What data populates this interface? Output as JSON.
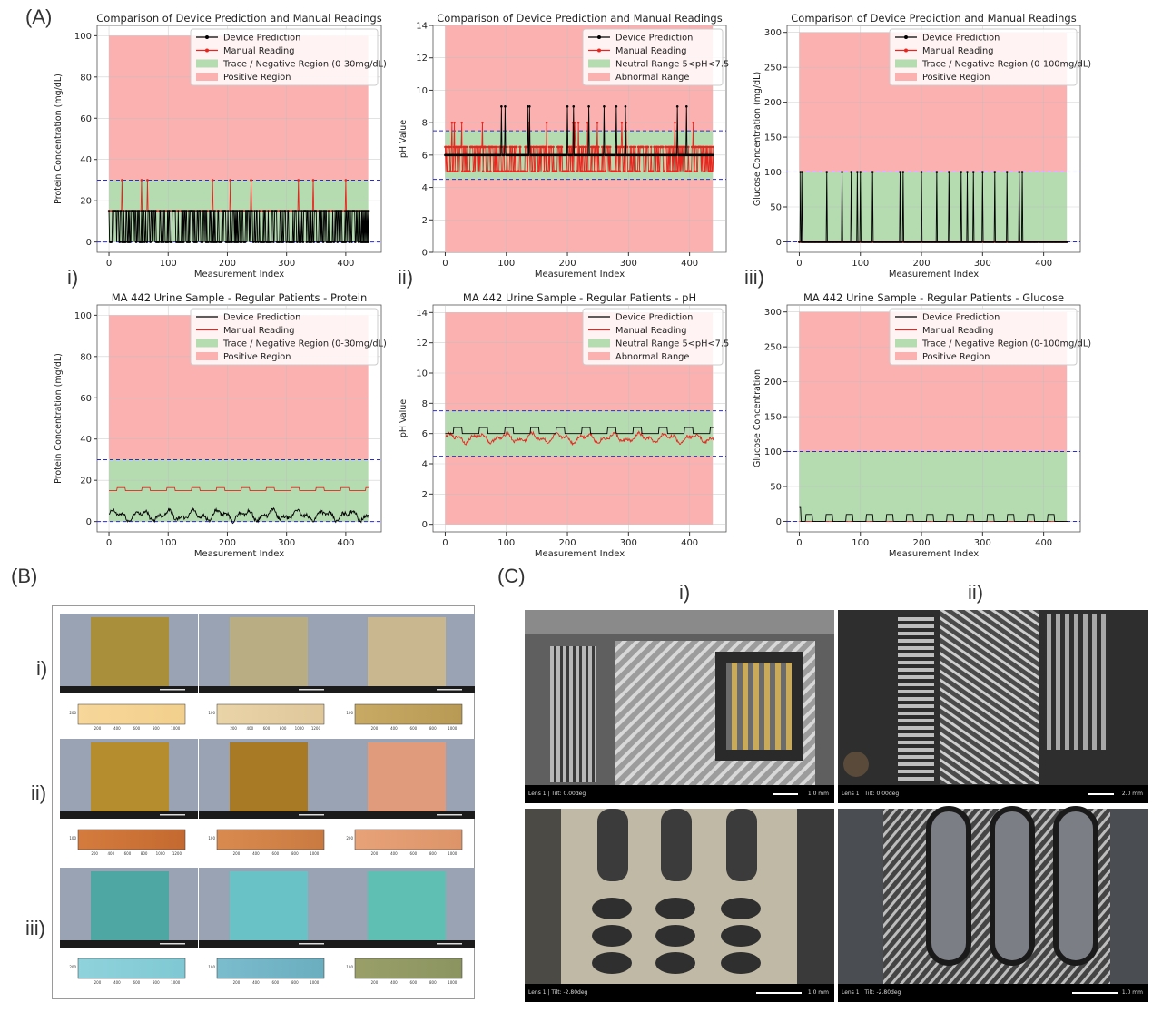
{
  "panels": {
    "a": "(A)",
    "b": "(B)",
    "c": "(C)",
    "roman": [
      "i)",
      "ii)",
      "iii)"
    ]
  },
  "axis_common": {
    "xlabel": "Measurement Index",
    "xticks": [
      0,
      100,
      200,
      300,
      400
    ],
    "xlim": [
      -20,
      460
    ]
  },
  "chart_data": [
    {
      "id": "protein-top",
      "type": "line",
      "title": "Comparison of Device Prediction and Manual Readings",
      "xlabel": "Measurement Index",
      "ylabel": "Protein Concentration (mg/dL)",
      "ylim": [
        -5,
        105
      ],
      "yticks": [
        0,
        20,
        40,
        60,
        80,
        100
      ],
      "threshold_lines": [
        0,
        30
      ],
      "regions": [
        {
          "name": "Trace / Negative Region (0-30mg/dL)",
          "from": 0,
          "to": 30,
          "color": "#b5dcb1"
        },
        {
          "name": "Positive Region",
          "from": 30,
          "to": 100,
          "color": "#fcb1b1"
        }
      ],
      "legend_position": "top-right",
      "markers": true,
      "series": [
        {
          "name": "Device Prediction",
          "color": "#000000",
          "base": 0,
          "alt": 15,
          "pattern": "dense"
        },
        {
          "name": "Manual Reading",
          "color": "#e8261f",
          "base": 15,
          "alt": 30,
          "spikes": [
            22,
            55,
            65,
            175,
            205,
            240,
            320,
            345,
            400
          ]
        }
      ]
    },
    {
      "id": "ph-top",
      "type": "line",
      "title": "Comparison of Device Prediction and Manual Readings",
      "xlabel": "Measurement Index",
      "ylabel": "pH Value",
      "ylim": [
        0,
        14
      ],
      "yticks": [
        0,
        2,
        4,
        6,
        8,
        10,
        12,
        14
      ],
      "threshold_lines": [
        4.5,
        7.5
      ],
      "regions": [
        {
          "name": "Neutral Range 5<pH<7.5",
          "from": 4.5,
          "to": 7.5,
          "color": "#b5dcb1"
        },
        {
          "name": "Abnormal Range",
          "from": 0,
          "to": 14,
          "color": "#fcb1b1"
        }
      ],
      "legend_position": "top-right",
      "markers": true,
      "series": [
        {
          "name": "Device Prediction",
          "color": "#000000",
          "base": 6,
          "spikes": [
            92,
            98,
            135,
            138,
            200,
            210,
            235,
            260,
            280,
            295,
            380,
            395
          ],
          "spike_value": 9
        },
        {
          "name": "Manual Reading",
          "color": "#e8261f",
          "base": 5,
          "alt": 6.5,
          "pattern": "dense-ph"
        }
      ]
    },
    {
      "id": "glucose-top",
      "type": "line",
      "title": "Comparison of Device Prediction and Manual Readings",
      "xlabel": "Measurement Index",
      "ylabel": "Glucose Concentration (mg/dL)",
      "ylim": [
        -15,
        310
      ],
      "yticks": [
        0,
        50,
        100,
        150,
        200,
        250,
        300
      ],
      "threshold_lines": [
        0,
        100
      ],
      "regions": [
        {
          "name": "Trace / Negative Region (0-100mg/dL)",
          "from": 0,
          "to": 100,
          "color": "#b5dcb1"
        },
        {
          "name": "Positive Region",
          "from": 100,
          "to": 300,
          "color": "#fcb1b1"
        }
      ],
      "legend_position": "top-right",
      "markers": true,
      "series": [
        {
          "name": "Device Prediction",
          "color": "#000000",
          "base": 0,
          "spikes": [
            2,
            5,
            45,
            70,
            85,
            95,
            100,
            120,
            165,
            170,
            200,
            225,
            245,
            265,
            275,
            285,
            300,
            320,
            340,
            360,
            365
          ],
          "spike_value": 100
        },
        {
          "name": "Manual Reading",
          "color": "#e8261f",
          "base": 0
        }
      ]
    },
    {
      "id": "protein-bottom",
      "type": "line",
      "title": "MA 442 Urine Sample - Regular Patients - Protein",
      "xlabel": "Measurement Index",
      "ylabel": "Protein Concentration (mg/dL)",
      "ylim": [
        -5,
        105
      ],
      "yticks": [
        0,
        20,
        40,
        60,
        80,
        100
      ],
      "threshold_lines": [
        0,
        30
      ],
      "regions": [
        {
          "name": "Trace / Negative Region (0-30mg/dL)",
          "from": 0,
          "to": 30,
          "color": "#b5dcb1"
        },
        {
          "name": "Positive Region",
          "from": 30,
          "to": 100,
          "color": "#fcb1b1"
        }
      ],
      "legend_position": "top-right",
      "markers": false,
      "series": [
        {
          "name": "Device Prediction",
          "color": "#000000",
          "base": 3,
          "amp": 3,
          "pattern": "wave"
        },
        {
          "name": "Manual Reading",
          "color": "#e8261f",
          "base": 15,
          "alt": 16.5,
          "pattern": "steps"
        }
      ]
    },
    {
      "id": "ph-bottom",
      "type": "line",
      "title": "MA 442 Urine Sample - Regular Patients - pH",
      "xlabel": "Measurement Index",
      "ylabel": "pH Value",
      "ylim": [
        -0.5,
        14.5
      ],
      "yticks": [
        0,
        2,
        4,
        6,
        8,
        10,
        12,
        14
      ],
      "threshold_lines": [
        4.5,
        7.5
      ],
      "regions": [
        {
          "name": "Neutral Range 5<pH<7.5",
          "from": 4.5,
          "to": 7.5,
          "color": "#b5dcb1"
        },
        {
          "name": "Abnormal Range",
          "from": 0,
          "to": 14,
          "color": "#fcb1b1"
        }
      ],
      "legend_position": "top-right",
      "markers": false,
      "series": [
        {
          "name": "Device Prediction",
          "color": "#000000",
          "base": 6,
          "alt": 6.4,
          "pattern": "steps"
        },
        {
          "name": "Manual Reading",
          "color": "#e8261f",
          "base": 5.7,
          "amp": 0.35,
          "pattern": "wave"
        }
      ]
    },
    {
      "id": "glucose-bottom",
      "type": "line",
      "title": "MA 442 Urine Sample - Regular Patients - Glucose",
      "xlabel": "Measurement Index",
      "ylabel": "Glucose Concentration",
      "ylim": [
        -15,
        310
      ],
      "yticks": [
        0,
        50,
        100,
        150,
        200,
        250,
        300
      ],
      "threshold_lines": [
        0,
        100
      ],
      "regions": [
        {
          "name": "Trace / Negative Region (0-100mg/dL)",
          "from": 0,
          "to": 100,
          "color": "#b5dcb1"
        },
        {
          "name": "Positive Region",
          "from": 100,
          "to": 300,
          "color": "#fcb1b1"
        }
      ],
      "legend_position": "top-right",
      "markers": false,
      "series": [
        {
          "name": "Device Prediction",
          "color": "#000000",
          "base": 0,
          "alt": 10,
          "pattern": "glucose-steps"
        },
        {
          "name": "Manual Reading",
          "color": "#e8261f",
          "base": 0
        }
      ]
    }
  ],
  "strips": {
    "rows": [
      {
        "label": "i)",
        "pads": [
          "#a98f3c",
          "#b9ad83",
          "#c8b78f"
        ],
        "bars": [
          [
            "#f7d79a",
            "#f2cf8c"
          ],
          [
            "#e9d4a8",
            "#dfc79a"
          ],
          [
            "#c8aa65",
            "#b89a55"
          ]
        ],
        "ticks": [
          [
            "200",
            "400",
            "600",
            "800",
            "1000"
          ],
          [
            "200",
            "400",
            "600",
            "800",
            "1000",
            "1200"
          ],
          [
            "200",
            "400",
            "600",
            "800",
            "1000"
          ]
        ],
        "ymarks": [
          "200",
          "100",
          "100"
        ]
      },
      {
        "label": "ii)",
        "pads": [
          "#b58d2f",
          "#a87a26",
          "#e09a7c"
        ],
        "bars": [
          [
            "#d47b3e",
            "#c46a30"
          ],
          [
            "#d98b4f",
            "#c97a40"
          ],
          [
            "#e8a278",
            "#dc9468"
          ]
        ],
        "ticks": [
          [
            "200",
            "400",
            "600",
            "800",
            "1000",
            "1200"
          ],
          [
            "200",
            "400",
            "600",
            "800",
            "1000"
          ],
          [
            "200",
            "400",
            "600",
            "800",
            "1000"
          ]
        ],
        "ymarks": [
          "100",
          "100",
          "200"
        ]
      },
      {
        "label": "iii)",
        "pads": [
          "#4fa7a4",
          "#68c2c6",
          "#5fbfb2"
        ],
        "bars": [
          [
            "#8fd3dc",
            "#7fc8d3"
          ],
          [
            "#7bbccd",
            "#6aaebf"
          ],
          [
            "#9a9f68",
            "#8b9460"
          ]
        ],
        "ticks": [
          [
            "200",
            "400",
            "600",
            "800",
            "1000"
          ],
          [
            "200",
            "400",
            "600",
            "800",
            "1000"
          ],
          [
            "200",
            "400",
            "600",
            "800",
            "1000"
          ]
        ],
        "ymarks": [
          "200",
          "100",
          "100"
        ]
      }
    ]
  },
  "micrographs": {
    "col_labels": [
      "i)",
      "ii)"
    ],
    "images": [
      {
        "info": "Lens 1 | Tilt: 0.00deg",
        "scale": "1.0 mm"
      },
      {
        "info": "Lens 1 | Tilt: 0.00deg",
        "scale": "2.0 mm"
      },
      {
        "info": "Lens 1 | Tilt: -2.80deg",
        "scale": "1.0 mm"
      },
      {
        "info": "Lens 1 | Tilt: -2.80deg",
        "scale": "1.0 mm"
      }
    ]
  }
}
